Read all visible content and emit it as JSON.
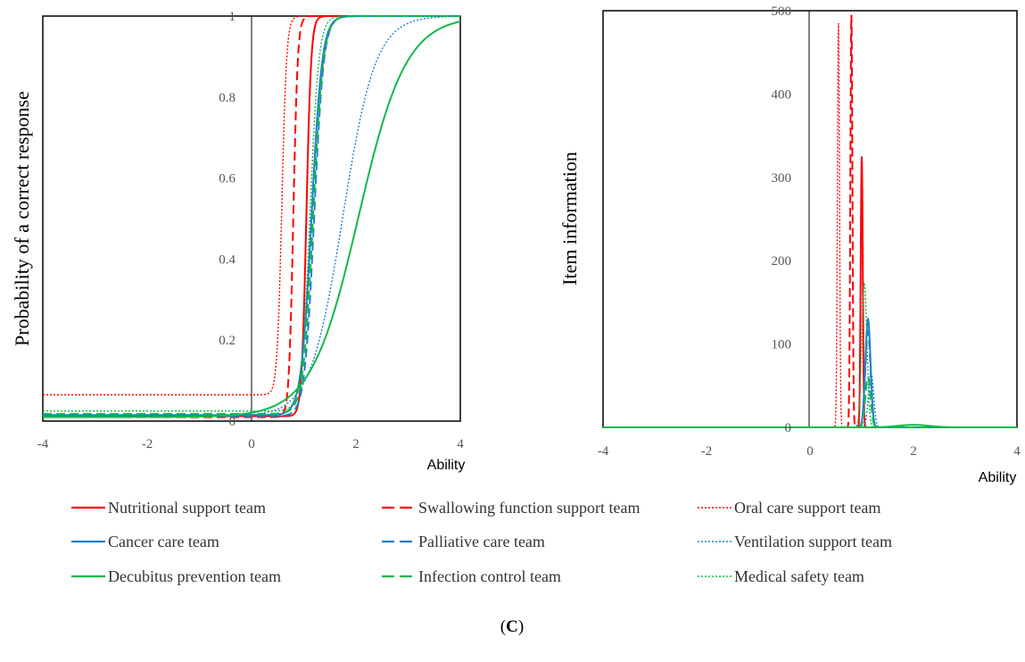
{
  "chart_data": [
    {
      "type": "line",
      "title": "",
      "xlabel": "Ability",
      "ylabel": "Probability  of a correct response",
      "xlim": [
        -4,
        4
      ],
      "ylim": [
        0,
        1
      ],
      "x_ticks": [
        "-4",
        "-2",
        "0",
        "2",
        "4"
      ],
      "y_ticks": [
        "0",
        "0.2",
        "0.4",
        "0.6",
        "0.8",
        "1"
      ],
      "grid": false,
      "description_of_curves": "logistic item characteristic curves; parameters are guessing c, discrimination a, difficulty b",
      "series": [
        {
          "name": "Nutritional support team",
          "c": 0.012,
          "a": 22,
          "b": 1.05
        },
        {
          "name": "Swallowing function support team",
          "c": 0.01,
          "a": 24,
          "b": 0.8
        },
        {
          "name": "Oral care support team",
          "c": 0.065,
          "a": 22,
          "b": 0.58
        },
        {
          "name": "Cancer care team",
          "c": 0.015,
          "a": 10,
          "b": 1.15
        },
        {
          "name": "Palliative care team",
          "c": 0.012,
          "a": 11,
          "b": 1.2
        },
        {
          "name": "Ventilation support team",
          "c": 0.012,
          "a": 3.2,
          "b": 1.75
        },
        {
          "name": "Decubitus prevention team",
          "c": 0.01,
          "a": 2.2,
          "b": 2.05
        },
        {
          "name": "Infection control team",
          "c": 0.018,
          "a": 10.5,
          "b": 1.18
        },
        {
          "name": "Medical safety team",
          "c": 0.025,
          "a": 12,
          "b": 1.12
        }
      ]
    },
    {
      "type": "line",
      "title": "",
      "xlabel": "Ability",
      "ylabel": "Item information",
      "xlim": [
        -4,
        4
      ],
      "ylim": [
        0,
        500
      ],
      "x_ticks": [
        "-4",
        "-2",
        "0",
        "2",
        "4"
      ],
      "y_ticks": [
        "0",
        "100",
        "200",
        "300",
        "400",
        "500"
      ],
      "grid": false,
      "series": [
        {
          "name": "Nutritional support team",
          "peak_x": 1.0,
          "peak": 325
        },
        {
          "name": "Swallowing function support team",
          "peak_x": 0.8,
          "peak": 495
        },
        {
          "name": "Oral care support team",
          "peak_x": 0.55,
          "peak": 485
        },
        {
          "name": "Cancer care team",
          "peak_x": 1.12,
          "peak": 130
        },
        {
          "name": "Palliative care team",
          "peak_x": 1.12,
          "peak": 115
        },
        {
          "name": "Ventilation support team",
          "peak_x": 1.18,
          "peak": 65
        },
        {
          "name": "Decubitus prevention team",
          "peak_x": 2.0,
          "peak": 3
        },
        {
          "name": "Infection control team",
          "peak_x": 1.12,
          "peak": 60
        },
        {
          "name": "Medical safety team",
          "peak_x": 1.05,
          "peak": 172
        }
      ]
    }
  ],
  "legend": {
    "items": [
      {
        "label": "Nutritional support team",
        "color": "#ff0000",
        "dash": "solid"
      },
      {
        "label": "Swallowing function support team",
        "color": "#ff0000",
        "dash": "dashed"
      },
      {
        "label": "Oral care support team",
        "color": "#ff0000",
        "dash": "dotted"
      },
      {
        "label": "Cancer care team",
        "color": "#1f7fd0",
        "dash": "solid"
      },
      {
        "label": "Palliative care team",
        "color": "#1f7fd0",
        "dash": "dashed"
      },
      {
        "label": "Ventilation support team",
        "color": "#1f7fd0",
        "dash": "dotted"
      },
      {
        "label": "Decubitus prevention team",
        "color": "#11b84a",
        "dash": "solid"
      },
      {
        "label": "Infection control team",
        "color": "#11b84a",
        "dash": "dashed"
      },
      {
        "label": "Medical safety team",
        "color": "#11b84a",
        "dash": "dotted"
      }
    ]
  },
  "caption": {
    "open": "(",
    "letter": "C",
    "close": ")"
  }
}
